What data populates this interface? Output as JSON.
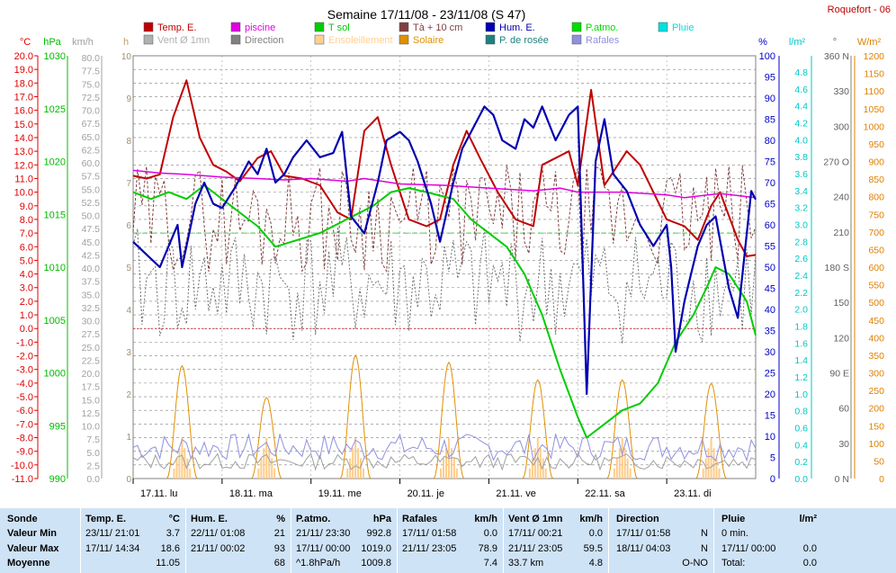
{
  "header": {
    "title": "Semaine 17/11/08 - 23/11/08 (S 47)",
    "station": "Roquefort - 06"
  },
  "colors": {
    "temp": "#c00000",
    "piscine": "#e000e0",
    "tsol": "#00cc00",
    "t10": "#804040",
    "hum": "#0000b0",
    "patmo": "#00dd00",
    "pluie": "#00e0e0",
    "vent": "#a0a0a0",
    "direction": "#707070",
    "ensol": "#ffcc88",
    "solaire": "#e09000",
    "rosee": "#208080",
    "rafales": "#9090e0",
    "grid": "#808080",
    "axis_red": "#e00000",
    "axis_green": "#00bb00",
    "axis_gray": "#a0a0a0",
    "axis_orange": "#e08000",
    "axis_blue": "#0000cc",
    "axis_cyan": "#00c8c8"
  },
  "legend": [
    {
      "label": "Temp. E.",
      "color": "#c00000"
    },
    {
      "label": "piscine",
      "color": "#e000e0"
    },
    {
      "label": "T sol",
      "color": "#00cc00"
    },
    {
      "label": "Tà + 10 cm",
      "color": "#804040"
    },
    {
      "label": "Hum. E.",
      "color": "#0000b0"
    },
    {
      "label": "P.atmo.",
      "color": "#00dd00"
    },
    {
      "label": "Pluie",
      "color": "#00e0e0"
    },
    {
      "label": "Vent Ø 1mn",
      "color": "#b0b0b0"
    },
    {
      "label": "Direction",
      "color": "#808080"
    },
    {
      "label": "Ensoleillement",
      "color": "#ffd090"
    },
    {
      "label": "Solaire",
      "color": "#e09000"
    },
    {
      "label": "P. de rosée",
      "color": "#208080"
    },
    {
      "label": "Rafales",
      "color": "#9090e0"
    }
  ],
  "axes": {
    "temp_unit": "°C",
    "hpa_unit": "hPa",
    "kmh_unit": "km/h",
    "h_unit": "h",
    "pct_unit": "%",
    "lm2_unit": "l/m²",
    "deg_unit": "°",
    "wm2_unit": "W/m²",
    "temp_ticks": [
      "20.0",
      "19.0",
      "18.0",
      "17.0",
      "16.0",
      "15.0",
      "14.0",
      "13.0",
      "12.0",
      "11.0",
      "10.0",
      "9.0",
      "8.0",
      "7.0",
      "6.0",
      "5.0",
      "4.0",
      "3.0",
      "2.0",
      "1.0",
      "0.0",
      "-1.0",
      "-2.0",
      "-3.0",
      "-4.0",
      "-5.0",
      "-6.0",
      "-7.0",
      "-8.0",
      "-9.0",
      "-10.0",
      "-11.0"
    ],
    "hpa_ticks": [
      "1030",
      "1025",
      "1020",
      "1015",
      "1010",
      "1005",
      "1000",
      "995",
      "990"
    ],
    "kmh_ticks": [
      "80.0",
      "77.5",
      "75.0",
      "72.5",
      "70.0",
      "67.5",
      "65.0",
      "62.5",
      "60.0",
      "57.5",
      "55.0",
      "52.5",
      "50.0",
      "47.5",
      "45.0",
      "42.5",
      "40.0",
      "37.5",
      "35.0",
      "32.5",
      "30.0",
      "27.5",
      "25.0",
      "22.5",
      "20.0",
      "17.5",
      "15.0",
      "12.5",
      "10.0",
      "7.5",
      "5.0",
      "2.5",
      "0.0"
    ],
    "h_ticks": [
      "10",
      "9",
      "8",
      "7",
      "6",
      "5",
      "4",
      "3",
      "2",
      "1",
      "0"
    ],
    "pct_ticks": [
      "100",
      "95",
      "90",
      "85",
      "80",
      "75",
      "70",
      "65",
      "60",
      "55",
      "50",
      "45",
      "40",
      "35",
      "30",
      "25",
      "20",
      "15",
      "10",
      "5",
      "0"
    ],
    "lm2_ticks": [
      "4.8",
      "4.6",
      "4.4",
      "4.2",
      "4.0",
      "3.8",
      "3.6",
      "3.4",
      "3.2",
      "3.0",
      "2.8",
      "2.6",
      "2.4",
      "2.2",
      "2.0",
      "1.8",
      "1.6",
      "1.4",
      "1.2",
      "1.0",
      "0.8",
      "0.6",
      "0.4",
      "0.2",
      "0.0"
    ],
    "deg_ticks": [
      "360 N",
      "330",
      "300",
      "270 O",
      "240",
      "210",
      "180 S",
      "150",
      "120",
      "90 E",
      "60",
      "30",
      "0 N"
    ],
    "wm2_ticks": [
      "1200",
      "1150",
      "1100",
      "1050",
      "1000",
      "950",
      "900",
      "850",
      "800",
      "750",
      "700",
      "650",
      "600",
      "550",
      "500",
      "450",
      "400",
      "350",
      "300",
      "250",
      "200",
      "150",
      "100",
      "50",
      "0"
    ],
    "days": [
      "17.11. lu",
      "18.11. ma",
      "19.11. me",
      "20.11. je",
      "21.11. ve",
      "22.11. sa",
      "23.11. di"
    ]
  },
  "chart_data": {
    "type": "line",
    "x_unit": "day index (0 = 17/11/08 00:00, 7 = 23/11/08 24:00)",
    "series": [
      {
        "name": "Temp. E.",
        "unit": "°C",
        "points": [
          [
            0,
            11.2
          ],
          [
            0.15,
            11.0
          ],
          [
            0.3,
            11.3
          ],
          [
            0.45,
            15.5
          ],
          [
            0.6,
            18.2
          ],
          [
            0.75,
            14.0
          ],
          [
            0.9,
            12.0
          ],
          [
            1.05,
            11.5
          ],
          [
            1.2,
            10.8
          ],
          [
            1.4,
            12.5
          ],
          [
            1.55,
            13.0
          ],
          [
            1.7,
            11.2
          ],
          [
            1.9,
            11.0
          ],
          [
            2.1,
            10.5
          ],
          [
            2.3,
            8.5
          ],
          [
            2.45,
            8.0
          ],
          [
            2.6,
            14.5
          ],
          [
            2.75,
            15.5
          ],
          [
            2.9,
            12.0
          ],
          [
            3.1,
            8.0
          ],
          [
            3.3,
            7.5
          ],
          [
            3.45,
            8.0
          ],
          [
            3.6,
            12.0
          ],
          [
            3.75,
            14.5
          ],
          [
            3.9,
            12.5
          ],
          [
            4.1,
            10.0
          ],
          [
            4.3,
            8.0
          ],
          [
            4.5,
            7.5
          ],
          [
            4.6,
            12.0
          ],
          [
            4.75,
            12.5
          ],
          [
            4.9,
            13.0
          ],
          [
            5.0,
            10.5
          ],
          [
            5.15,
            17.5
          ],
          [
            5.3,
            10.5
          ],
          [
            5.4,
            11.5
          ],
          [
            5.55,
            13.0
          ],
          [
            5.7,
            12.0
          ],
          [
            5.85,
            10.0
          ],
          [
            6.0,
            8.0
          ],
          [
            6.2,
            7.5
          ],
          [
            6.35,
            6.5
          ],
          [
            6.5,
            9.0
          ],
          [
            6.6,
            10.0
          ],
          [
            6.8,
            6.5
          ],
          [
            6.9,
            5.3
          ],
          [
            7.0,
            5.4
          ]
        ]
      },
      {
        "name": "piscine",
        "unit": "°C",
        "points": [
          [
            0,
            11.6
          ],
          [
            0.3,
            11.4
          ],
          [
            0.6,
            11.3
          ],
          [
            1.0,
            11.1
          ],
          [
            1.4,
            11.0
          ],
          [
            1.7,
            10.9
          ],
          [
            2.0,
            11.0
          ],
          [
            2.4,
            10.8
          ],
          [
            2.6,
            11.0
          ],
          [
            3.0,
            10.6
          ],
          [
            3.5,
            10.5
          ],
          [
            4.0,
            10.3
          ],
          [
            4.5,
            10.1
          ],
          [
            4.8,
            10.3
          ],
          [
            5.0,
            10.0
          ],
          [
            5.5,
            10.0
          ],
          [
            6.0,
            9.8
          ],
          [
            6.2,
            9.6
          ],
          [
            6.6,
            9.9
          ],
          [
            7.0,
            9.6
          ]
        ]
      },
      {
        "name": "T sol",
        "unit": "°C",
        "points": [
          [
            0,
            10.0
          ],
          [
            0.2,
            9.5
          ],
          [
            0.4,
            10.0
          ],
          [
            0.6,
            9.5
          ],
          [
            0.8,
            10.5
          ],
          [
            1.1,
            9.0
          ],
          [
            1.4,
            7.5
          ],
          [
            1.6,
            6.0
          ],
          [
            1.85,
            6.5
          ],
          [
            2.1,
            7.0
          ],
          [
            2.4,
            8.0
          ],
          [
            2.7,
            9.0
          ],
          [
            2.9,
            10.0
          ],
          [
            3.1,
            10.3
          ],
          [
            3.3,
            10.0
          ],
          [
            3.6,
            9.5
          ],
          [
            3.8,
            8.0
          ],
          [
            4.0,
            7.0
          ],
          [
            4.2,
            6.0
          ],
          [
            4.4,
            4.0
          ],
          [
            4.6,
            1.0
          ],
          [
            4.8,
            -3.0
          ],
          [
            5.0,
            -6.5
          ],
          [
            5.1,
            -8.0
          ],
          [
            5.3,
            -7.0
          ],
          [
            5.5,
            -6.0
          ],
          [
            5.7,
            -5.5
          ],
          [
            5.9,
            -4.0
          ],
          [
            6.1,
            -1.0
          ],
          [
            6.3,
            1.0
          ],
          [
            6.45,
            3.0
          ],
          [
            6.55,
            4.5
          ],
          [
            6.7,
            4.0
          ],
          [
            6.9,
            2.0
          ],
          [
            7.0,
            -0.5
          ]
        ]
      },
      {
        "name": "Hum. E.",
        "unit": "%",
        "points": [
          [
            0,
            56
          ],
          [
            0.15,
            53
          ],
          [
            0.3,
            50
          ],
          [
            0.4,
            55
          ],
          [
            0.5,
            60
          ],
          [
            0.55,
            50
          ],
          [
            0.7,
            65
          ],
          [
            0.8,
            70
          ],
          [
            0.9,
            65
          ],
          [
            1.0,
            64
          ],
          [
            1.15,
            69
          ],
          [
            1.3,
            75
          ],
          [
            1.4,
            72
          ],
          [
            1.5,
            78
          ],
          [
            1.6,
            70
          ],
          [
            1.7,
            72
          ],
          [
            1.8,
            76
          ],
          [
            1.95,
            80
          ],
          [
            2.1,
            76
          ],
          [
            2.25,
            77
          ],
          [
            2.35,
            82
          ],
          [
            2.45,
            62
          ],
          [
            2.6,
            58
          ],
          [
            2.75,
            70
          ],
          [
            2.85,
            80
          ],
          [
            3.0,
            82
          ],
          [
            3.1,
            80
          ],
          [
            3.2,
            75
          ],
          [
            3.35,
            65
          ],
          [
            3.45,
            56
          ],
          [
            3.6,
            70
          ],
          [
            3.7,
            78
          ],
          [
            3.85,
            84
          ],
          [
            3.95,
            88
          ],
          [
            4.05,
            86
          ],
          [
            4.15,
            80
          ],
          [
            4.3,
            78
          ],
          [
            4.4,
            85
          ],
          [
            4.5,
            83
          ],
          [
            4.6,
            88
          ],
          [
            4.75,
            80
          ],
          [
            4.9,
            86
          ],
          [
            5.0,
            88
          ],
          [
            5.1,
            20
          ],
          [
            5.2,
            75
          ],
          [
            5.3,
            85
          ],
          [
            5.4,
            72
          ],
          [
            5.55,
            68
          ],
          [
            5.7,
            60
          ],
          [
            5.85,
            55
          ],
          [
            6.0,
            60
          ],
          [
            6.05,
            50
          ],
          [
            6.1,
            30
          ],
          [
            6.2,
            42
          ],
          [
            6.35,
            55
          ],
          [
            6.45,
            60
          ],
          [
            6.55,
            62
          ],
          [
            6.7,
            45
          ],
          [
            6.8,
            38
          ],
          [
            6.95,
            68
          ],
          [
            7.0,
            66
          ]
        ]
      }
    ],
    "secondary_series": [
      "Tà + 10 cm",
      "P. de rosée",
      "Vent Ø 1mn",
      "Rafales",
      "Direction",
      "Solaire",
      "Ensoleillement",
      "Pluie"
    ],
    "solar_peaks_day": [
      0.55,
      1.5,
      2.5,
      3.55,
      4.55,
      5.5,
      6.5
    ],
    "solar_peaks_wm2": [
      320,
      230,
      350,
      330,
      280,
      280,
      270
    ]
  },
  "stats": {
    "sonde": {
      "title": "Sonde",
      "rows": [
        "Valeur Min",
        "Valeur Max",
        "Moyenne"
      ]
    },
    "temp": {
      "title": "Temp. E.",
      "unit": "°C",
      "min_time": "23/11/ 21:01",
      "min_val": "3.7",
      "max_time": "17/11/ 14:34",
      "max_val": "18.6",
      "mean": "11.05"
    },
    "hum": {
      "title": "Hum. E.",
      "unit": "%",
      "min_time": "22/11/ 01:08",
      "min_val": "21",
      "max_time": "21/11/ 00:02",
      "max_val": "93",
      "mean": "68"
    },
    "patmo": {
      "title": "P.atmo.",
      "unit": "hPa",
      "min_time": "21/11/ 23:30",
      "min_val": "992.8",
      "max_time": "17/11/ 00:00",
      "max_val": "1019.0",
      "trend": "^1.8hPa/h",
      "mean": "1009.8"
    },
    "rafales": {
      "title": "Rafales",
      "unit": "km/h",
      "min_time": "17/11/ 01:58",
      "min_val": "0.0",
      "max_time": "21/11/ 23:05",
      "max_val": "78.9",
      "mean": "7.4"
    },
    "vent": {
      "title": "Vent Ø 1mn",
      "unit": "km/h",
      "min_time": "17/11/ 00:21",
      "min_val": "0.0",
      "max_time": "21/11/ 23:05",
      "max_val": "59.5",
      "dist": "33.7 km",
      "mean": "4.8"
    },
    "direction": {
      "title": "Direction",
      "min_time": "17/11/ 01:58",
      "min_val": "N",
      "max_time": "18/11/ 04:03",
      "max_val": "N",
      "mean": "O-NO"
    },
    "pluie": {
      "title": "Pluie",
      "unit": "l/m²",
      "min": "0 min.",
      "max_time": "17/11/ 00:00",
      "max_val": "0.0",
      "total_label": "Total:",
      "total": "0.0"
    }
  }
}
